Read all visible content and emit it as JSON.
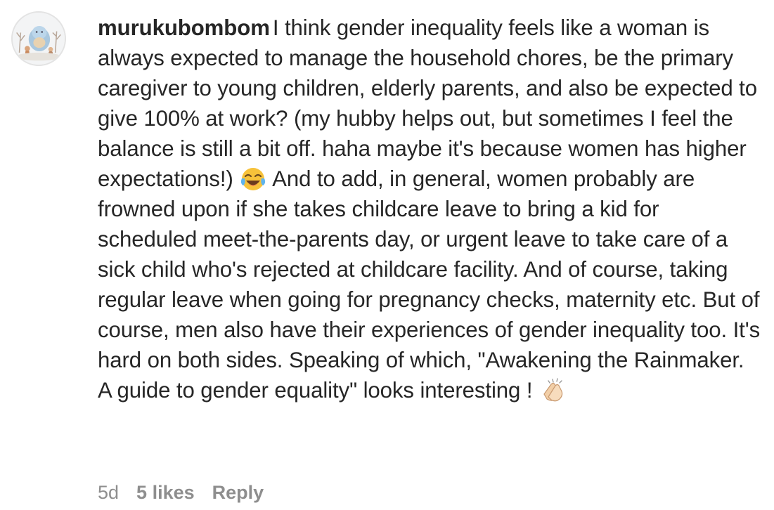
{
  "comment": {
    "username": "murukubombom",
    "text_part1": "I think gender inequality feels like a woman is always expected to manage the household chores, be the primary caregiver to young children, elderly parents, and also be expected to give 100% at work? (my hubby helps out, but sometimes I feel the balance is still a bit off. haha maybe it's because women has higher expectations!)",
    "emoji_1": "face-with-tears-of-joy-icon",
    "text_part2": " And to add, in general, women probably are frowned upon if she takes childcare leave to bring a kid for scheduled meet-the-parents day, or urgent leave to take care of a sick child who's rejected at childcare facility. And of course, taking regular leave when going for pregnancy checks, maternity etc. But of course, men also have their experiences of gender inequality too. It's hard on both sides. Speaking of which, \"Awakening the Rainmaker. A guide to gender equality\" looks interesting ! ",
    "emoji_2": "clapping-hands-icon",
    "age": "5d",
    "likes": "5 likes",
    "reply_label": "Reply"
  },
  "colors": {
    "text": "#262626",
    "meta": "#8e8e8e"
  }
}
